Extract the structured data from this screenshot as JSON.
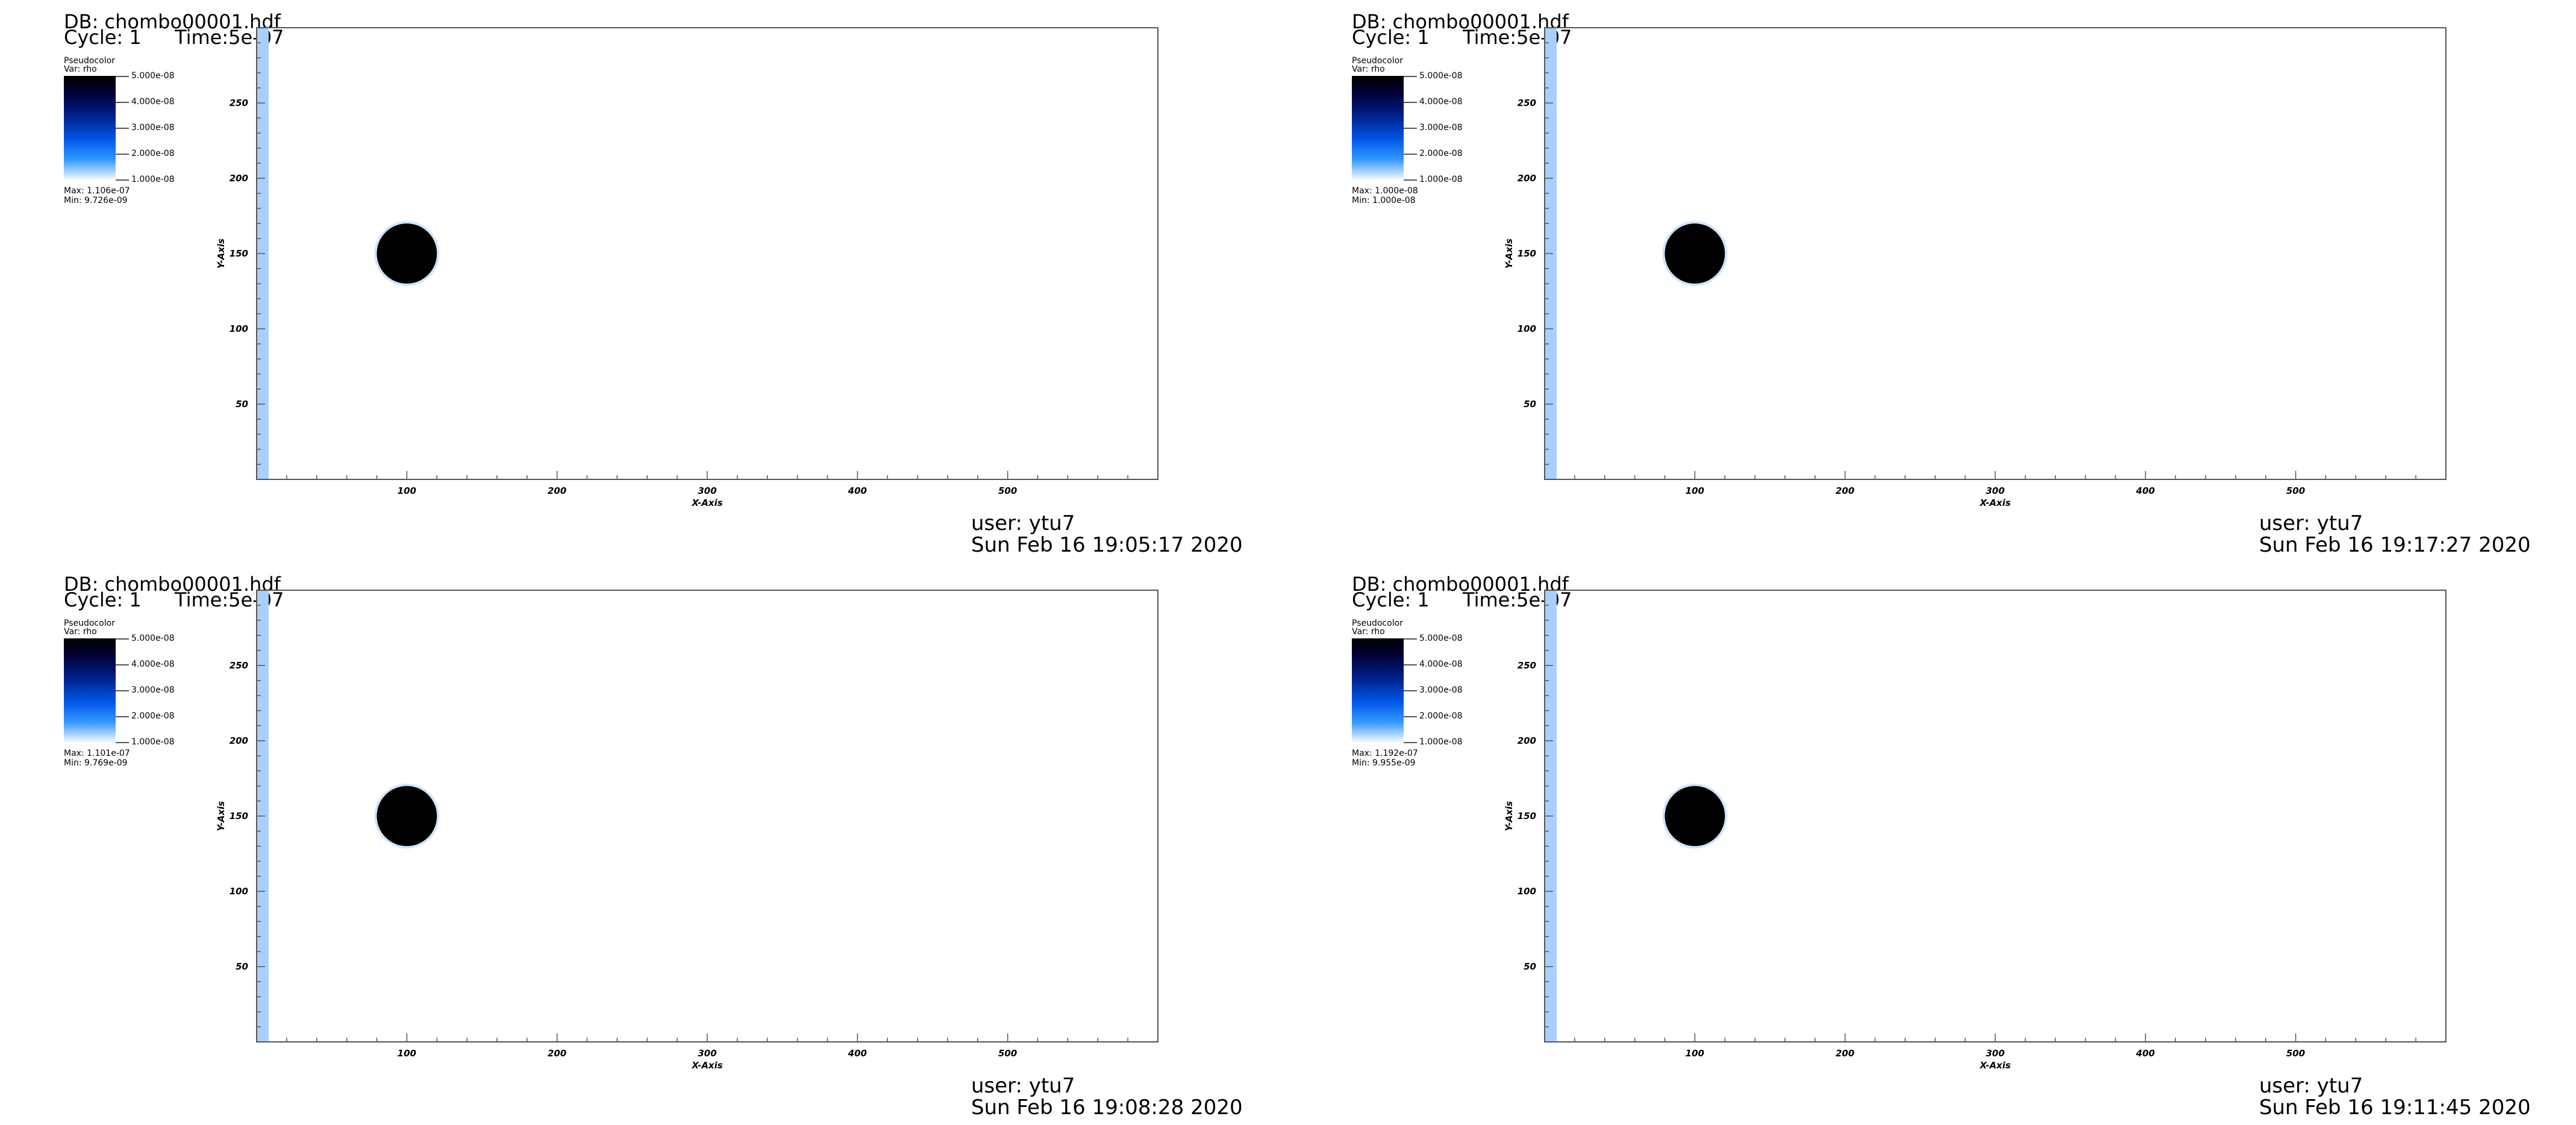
{
  "colors": {
    "background": "#ffffff",
    "frame": "#555555",
    "disk": "#000000",
    "edge_strip": "#a8cfff",
    "halo": "#cfe4ff"
  },
  "panels": [
    {
      "db_label": "DB: chombo00001.hdf",
      "cycle_label": "Cycle: 1",
      "time_label": "Time:5e-07",
      "legend_title": "Pseudocolor",
      "legend_var": "Var: rho",
      "legend_ticks": [
        "5.000e-08",
        "4.000e-08",
        "3.000e-08",
        "2.000e-08",
        "1.000e-08"
      ],
      "max_label": "Max:  1.106e-07",
      "min_label": "Min:  9.726e-09",
      "user_label": "user: ytu7",
      "date_label": "Sun Feb 16 19:05:17 2020"
    },
    {
      "db_label": "DB: chombo00001.hdf",
      "cycle_label": "Cycle: 1",
      "time_label": "Time:5e-07",
      "legend_title": "Pseudocolor",
      "legend_var": "Var: rho",
      "legend_ticks": [
        "5.000e-08",
        "4.000e-08",
        "3.000e-08",
        "2.000e-08",
        "1.000e-08"
      ],
      "max_label": "Max:  1.000e-08",
      "min_label": "Min:  1.000e-08",
      "user_label": "user: ytu7",
      "date_label": "Sun Feb 16 19:17:27 2020"
    },
    {
      "db_label": "DB: chombo00001.hdf",
      "cycle_label": "Cycle: 1",
      "time_label": "Time:5e-07",
      "legend_title": "Pseudocolor",
      "legend_var": "Var: rho",
      "legend_ticks": [
        "5.000e-08",
        "4.000e-08",
        "3.000e-08",
        "2.000e-08",
        "1.000e-08"
      ],
      "max_label": "Max:  1.101e-07",
      "min_label": "Min:  9.769e-09",
      "user_label": "user: ytu7",
      "date_label": "Sun Feb 16 19:08:28 2020"
    },
    {
      "db_label": "DB: chombo00001.hdf",
      "cycle_label": "Cycle: 1",
      "time_label": "Time:5e-07",
      "legend_title": "Pseudocolor",
      "legend_var": "Var: rho",
      "legend_ticks": [
        "5.000e-08",
        "4.000e-08",
        "3.000e-08",
        "2.000e-08",
        "1.000e-08"
      ],
      "max_label": "Max:  1.192e-07",
      "min_label": "Min:  9.955e-09",
      "user_label": "user: ytu7",
      "date_label": "Sun Feb 16 19:11:45 2020"
    }
  ],
  "chart_data": {
    "type": "heatmap",
    "xlabel": "X-Axis",
    "ylabel": "Y-Axis",
    "xlim": [
      0,
      600
    ],
    "ylim": [
      0,
      300
    ],
    "xticks": [
      100,
      200,
      300,
      400,
      500
    ],
    "yticks": [
      50,
      100,
      150,
      200,
      250
    ],
    "xtick_labels": [
      "100",
      "200",
      "300",
      "400",
      "500"
    ],
    "ytick_labels": [
      "50",
      "100",
      "150",
      "200",
      "250"
    ],
    "disk": {
      "cx": 100,
      "cy": 150,
      "r": 20
    },
    "edge_strip": {
      "x0": 0,
      "x1": 8
    }
  }
}
